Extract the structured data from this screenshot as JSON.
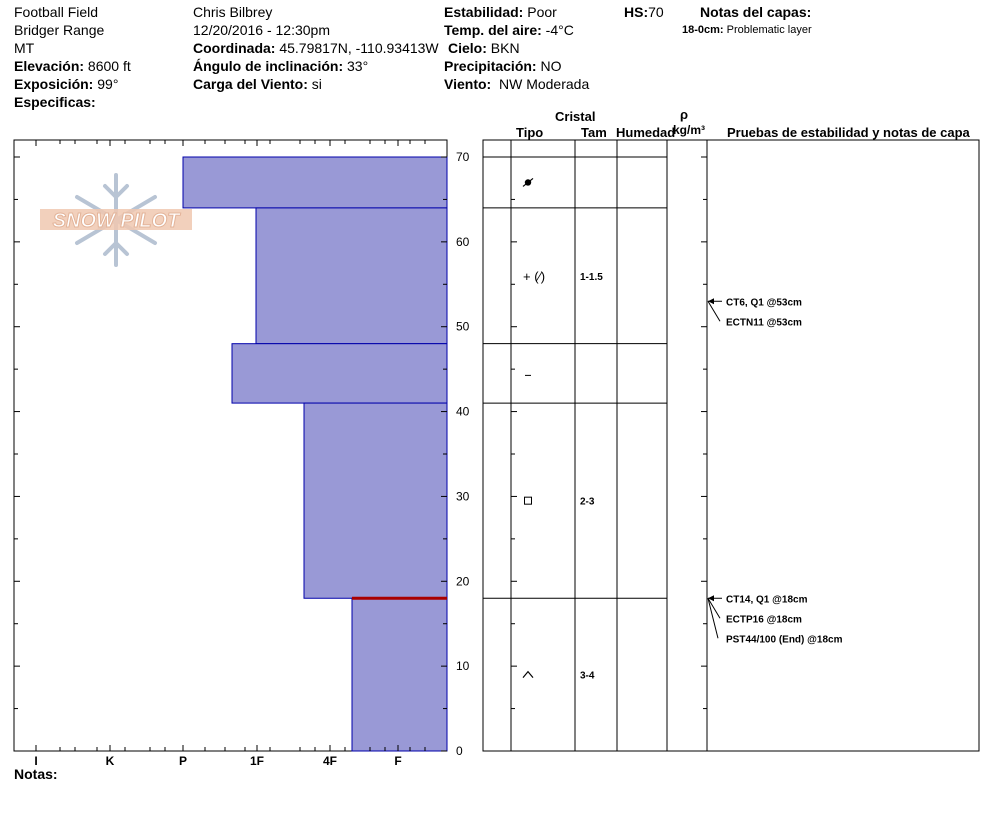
{
  "header": {
    "location": "Football Field",
    "range": "Bridger Range",
    "state": "MT",
    "elevation_label": "Elevación:",
    "elevation_value": "8600 ft",
    "aspect_label": "Exposición:",
    "aspect_value": "99°",
    "specifics_label": "Especificas:",
    "observer": "Chris Bilbrey",
    "datetime": "12/20/2016 - 12:30pm",
    "coord_label": "Coordinada:",
    "coord_value": "45.79817N, -110.93413W",
    "slope_label": "Ángulo de inclinación:",
    "slope_value": "33°",
    "wind_load_label": "Carga del Viento:",
    "wind_load_value": "si",
    "stability_label": "Estabilidad:",
    "stability_value": "Poor",
    "air_temp_label": "Temp. del aire:",
    "air_temp_value": "-4°C",
    "sky_label": "Cielo:",
    "sky_value": "BKN",
    "precip_label": "Precipitación:",
    "precip_value": "NO",
    "wind_label": "Viento:",
    "wind_value": "NW Moderada",
    "hs_label": "HS:",
    "hs_value": "70",
    "layer_notes_label": "Notas del capas:",
    "layer_note_depth": "18-0cm:",
    "layer_note_text": "Problematic layer"
  },
  "logo": {
    "text": "SNOW PILOT"
  },
  "notes_label": "Notas:",
  "columns": {
    "crystal": "Cristal",
    "type": "Tipo",
    "size": "Tam",
    "moisture": "Humedad",
    "density_symbol": "ρ",
    "density_unit": "kg/m³",
    "tests": "Pruebas de estabilidad y notas de capa"
  },
  "chart_data": {
    "type": "bar",
    "orientation": "horizontal",
    "y_axis": {
      "range": [
        0,
        70
      ],
      "ticks": [
        "0",
        "10",
        "20",
        "30",
        "40",
        "50",
        "60",
        "70"
      ],
      "unit": "cm"
    },
    "x_axis": {
      "categories": [
        "I",
        "K",
        "P",
        "1F",
        "4F",
        "F"
      ]
    },
    "layers": [
      {
        "top": 70,
        "bottom": 64,
        "hardness": "P",
        "grain": "precipitation-particles",
        "size": ""
      },
      {
        "top": 64,
        "bottom": 48,
        "hardness": "1F",
        "grain": "decomposing-fragments",
        "size": "1-1.5"
      },
      {
        "top": 48,
        "bottom": 41,
        "hardness": "1F-",
        "grain": "rounded",
        "size": ""
      },
      {
        "top": 41,
        "bottom": 18,
        "hardness": "4F",
        "grain": "faceted",
        "size": "2-3"
      },
      {
        "top": 18,
        "bottom": 0,
        "hardness": "F+",
        "grain": "depth-hoar",
        "size": "3-4"
      }
    ],
    "layer_boundaries": [
      70,
      64,
      48,
      41,
      18
    ],
    "problem_layer_depth": 18,
    "stability_tests": [
      {
        "depth": 53,
        "labels": [
          "CT6, Q1 @53cm",
          "ECTN11 @53cm"
        ]
      },
      {
        "depth": 18,
        "labels": [
          "CT14, Q1 @18cm",
          "ECTP16 @18cm",
          "PST44/100 (End) @18cm"
        ]
      }
    ],
    "colors": {
      "fill": "#9999d6",
      "edge": "#0000aa",
      "problem": "#aa0000"
    }
  }
}
